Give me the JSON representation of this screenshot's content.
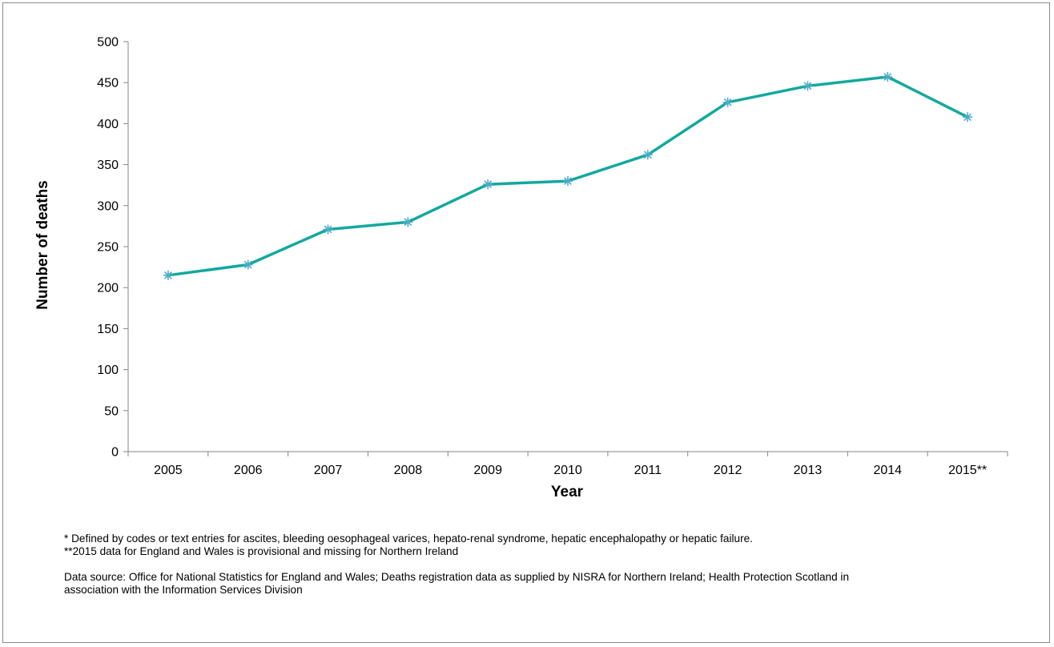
{
  "chart_data": {
    "type": "line",
    "categories": [
      "2005",
      "2006",
      "2007",
      "2008",
      "2009",
      "2010",
      "2011",
      "2012",
      "2013",
      "2014",
      "2015**"
    ],
    "series": [
      {
        "values": [
          215,
          228,
          271,
          280,
          326,
          330,
          362,
          426,
          446,
          457,
          408
        ]
      }
    ],
    "xlabel": "Year",
    "ylabel": "Number of deaths",
    "ylim": [
      0,
      500
    ],
    "yticks": [
      0,
      50,
      100,
      150,
      200,
      250,
      300,
      350,
      400,
      450,
      500
    ],
    "grid": false,
    "line_color": "#13a89e",
    "marker_color": "#4bacc6",
    "marker": "asterisk"
  },
  "notes": {
    "footnote1": "* Defined by codes or text entries for ascites, bleeding oesophageal varices, hepato-renal syndrome, hepatic encephalopathy or hepatic failure.",
    "footnote2": "**2015 data for England and Wales is provisional and missing for Northern Ireland",
    "source_line1": "Data source: Office for National Statistics for England and Wales;  Deaths registration data as supplied by NISRA for Northern Ireland; Health Protection Scotland in",
    "source_line2": "association with the Information Services Division"
  }
}
